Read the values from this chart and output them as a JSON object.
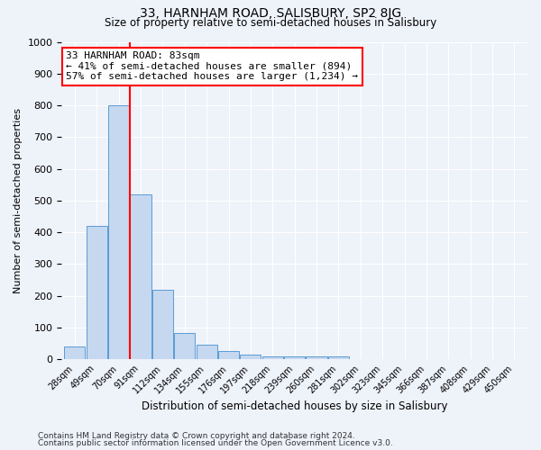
{
  "title": "33, HARNHAM ROAD, SALISBURY, SP2 8JG",
  "subtitle": "Size of property relative to semi-detached houses in Salisbury",
  "xlabel": "Distribution of semi-detached houses by size in Salisbury",
  "ylabel": "Number of semi-detached properties",
  "bar_labels": [
    "28sqm",
    "49sqm",
    "70sqm",
    "91sqm",
    "112sqm",
    "134sqm",
    "155sqm",
    "176sqm",
    "197sqm",
    "218sqm",
    "239sqm",
    "260sqm",
    "281sqm",
    "302sqm",
    "323sqm",
    "345sqm",
    "366sqm",
    "387sqm",
    "408sqm",
    "429sqm",
    "450sqm"
  ],
  "bar_values": [
    40,
    420,
    800,
    520,
    220,
    83,
    47,
    25,
    15,
    10,
    8,
    10,
    8,
    0,
    0,
    0,
    0,
    0,
    0,
    0,
    0
  ],
  "bar_color": "#c5d8f0",
  "bar_edge_color": "#5b9bd5",
  "vline_x": 2.5,
  "vline_color": "red",
  "ylim": [
    0,
    1000
  ],
  "annotation_title": "33 HARNHAM ROAD: 83sqm",
  "annotation_line1": "← 41% of semi-detached houses are smaller (894)",
  "annotation_line2": "57% of semi-detached houses are larger (1,234) →",
  "annotation_box_color": "white",
  "annotation_box_edgecolor": "red",
  "footer1": "Contains HM Land Registry data © Crown copyright and database right 2024.",
  "footer2": "Contains public sector information licensed under the Open Government Licence v3.0.",
  "background_color": "#eef2f9"
}
